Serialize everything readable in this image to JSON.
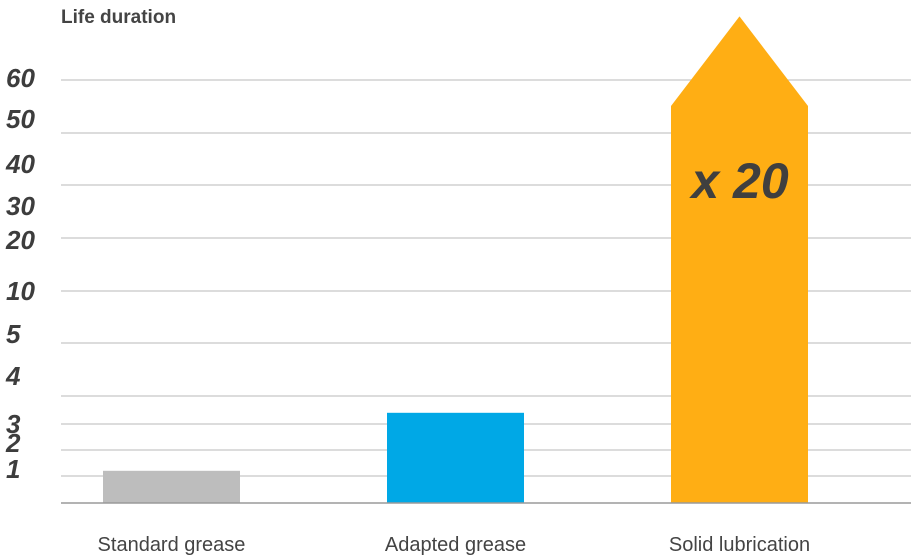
{
  "chart_data": {
    "type": "bar",
    "title": "Life duration",
    "xlabel": "",
    "ylabel": "",
    "y_ticks": [
      "1",
      "2",
      "3",
      "4",
      "5",
      "10",
      "20",
      "30",
      "40",
      "50",
      "60"
    ],
    "categories": [
      "Standard grease",
      "Adapted grease",
      "Solid lubrication"
    ],
    "values": [
      1.2,
      3.4,
      62
    ],
    "colors": [
      "#bdbdbd",
      "#00a8e6",
      "#ffae14"
    ],
    "annotation": "x 20",
    "grid": true,
    "legend": "none"
  }
}
